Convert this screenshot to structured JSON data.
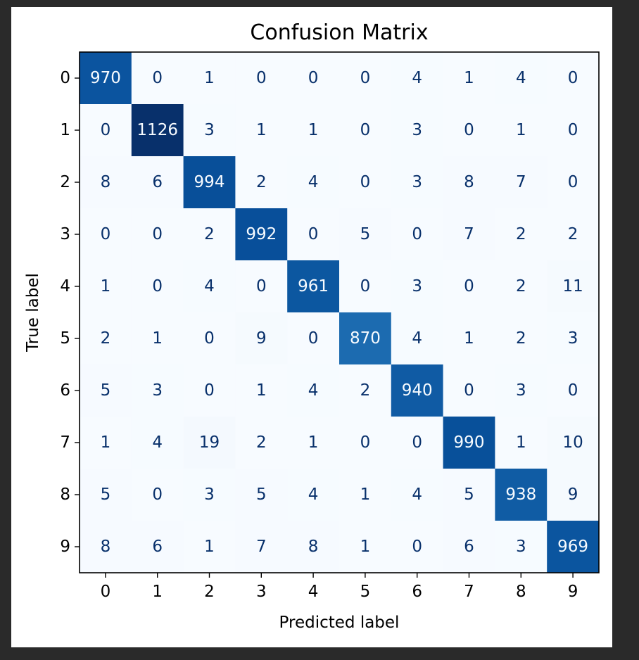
{
  "chart_data": {
    "type": "heatmap",
    "title": "Confusion Matrix",
    "xlabel": "Predicted label",
    "ylabel": "True label",
    "x_ticks": [
      "0",
      "1",
      "2",
      "3",
      "4",
      "5",
      "6",
      "7",
      "8",
      "9"
    ],
    "y_ticks": [
      "0",
      "1",
      "2",
      "3",
      "4",
      "5",
      "6",
      "7",
      "8",
      "9"
    ],
    "colormap": "Blues",
    "colorbar": false,
    "values": [
      [
        970,
        0,
        1,
        0,
        0,
        0,
        4,
        1,
        4,
        0
      ],
      [
        0,
        1126,
        3,
        1,
        1,
        0,
        3,
        0,
        1,
        0
      ],
      [
        8,
        6,
        994,
        2,
        4,
        0,
        3,
        8,
        7,
        0
      ],
      [
        0,
        0,
        2,
        992,
        0,
        5,
        0,
        7,
        2,
        2
      ],
      [
        1,
        0,
        4,
        0,
        961,
        0,
        3,
        0,
        2,
        11
      ],
      [
        2,
        1,
        0,
        9,
        0,
        870,
        4,
        1,
        2,
        3
      ],
      [
        5,
        3,
        0,
        1,
        4,
        2,
        940,
        0,
        3,
        0
      ],
      [
        1,
        4,
        19,
        2,
        1,
        0,
        0,
        990,
        1,
        10
      ],
      [
        5,
        0,
        3,
        5,
        4,
        1,
        4,
        5,
        938,
        9
      ],
      [
        8,
        6,
        1,
        7,
        8,
        1,
        0,
        6,
        3,
        969
      ]
    ],
    "colors": {
      "low": "#f7fbff",
      "high": "#08306b",
      "text_light": "#f7fbff",
      "text_dark": "#08306b"
    }
  }
}
